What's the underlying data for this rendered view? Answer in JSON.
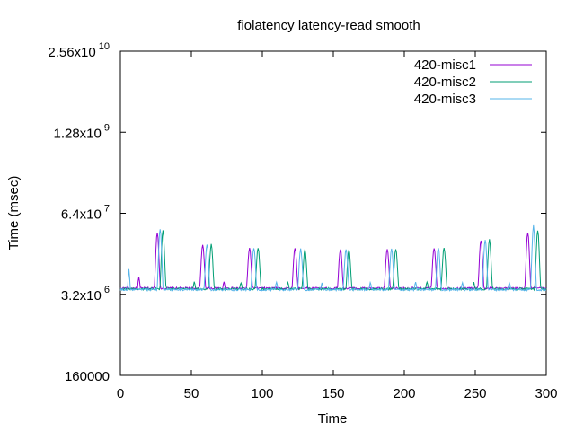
{
  "chart_data": {
    "type": "line",
    "title": "fiolatency latency-read smooth",
    "xlabel": "Time",
    "ylabel": "Time (msec)",
    "xlim": [
      0,
      300
    ],
    "ylim": [
      160000,
      25600000000
    ],
    "yscale": "log",
    "grid": false,
    "legend_position": "top-right",
    "x_ticks": [
      {
        "value": 0,
        "label": "0"
      },
      {
        "value": 50,
        "label": "50"
      },
      {
        "value": 100,
        "label": "100"
      },
      {
        "value": 150,
        "label": "150"
      },
      {
        "value": 200,
        "label": "200"
      },
      {
        "value": 250,
        "label": "250"
      },
      {
        "value": 300,
        "label": "300"
      }
    ],
    "y_ticks": [
      {
        "value": 160000,
        "mantissa": "160000",
        "exponent": ""
      },
      {
        "value": 3200000,
        "mantissa": "3.2x10",
        "exponent": "6"
      },
      {
        "value": 64000000,
        "mantissa": "6.4x10",
        "exponent": "7"
      },
      {
        "value": 1280000000,
        "mantissa": "1.28x10",
        "exponent": "9"
      },
      {
        "value": 25600000000,
        "mantissa": "2.56x10",
        "exponent": "10"
      }
    ],
    "series": [
      {
        "name": "420-misc1",
        "color": "#9400d3",
        "baseline": 4000000,
        "peaks": [
          [
            13,
            6000000
          ],
          [
            26,
            32000000
          ],
          [
            58,
            20000000
          ],
          [
            73,
            5000000
          ],
          [
            91,
            18000000
          ],
          [
            123,
            18000000
          ],
          [
            155,
            17000000
          ],
          [
            188,
            17000000
          ],
          [
            221,
            18000000
          ],
          [
            254,
            24000000
          ],
          [
            287,
            32000000
          ]
        ]
      },
      {
        "name": "420-misc2",
        "color": "#009e73",
        "baseline": 3900000,
        "peaks": [
          [
            30,
            34000000
          ],
          [
            52,
            5000000
          ],
          [
            64,
            20000000
          ],
          [
            85,
            5000000
          ],
          [
            97,
            18000000
          ],
          [
            118,
            5000000
          ],
          [
            130,
            17000000
          ],
          [
            161,
            17000000
          ],
          [
            194,
            17000000
          ],
          [
            216,
            5000000
          ],
          [
            228,
            18000000
          ],
          [
            249,
            5000000
          ],
          [
            260,
            24000000
          ],
          [
            294,
            34000000
          ]
        ]
      },
      {
        "name": "420-misc3",
        "color": "#56b4e9",
        "baseline": 3800000,
        "peaks": [
          [
            6,
            8000000
          ],
          [
            28,
            36000000
          ],
          [
            61,
            20000000
          ],
          [
            94,
            18000000
          ],
          [
            110,
            5000000
          ],
          [
            127,
            17000000
          ],
          [
            142,
            5000000
          ],
          [
            159,
            17000000
          ],
          [
            176,
            5000000
          ],
          [
            191,
            17000000
          ],
          [
            208,
            5000000
          ],
          [
            224,
            18000000
          ],
          [
            241,
            5000000
          ],
          [
            257,
            24000000
          ],
          [
            274,
            5000000
          ],
          [
            291,
            40000000
          ]
        ]
      }
    ]
  }
}
